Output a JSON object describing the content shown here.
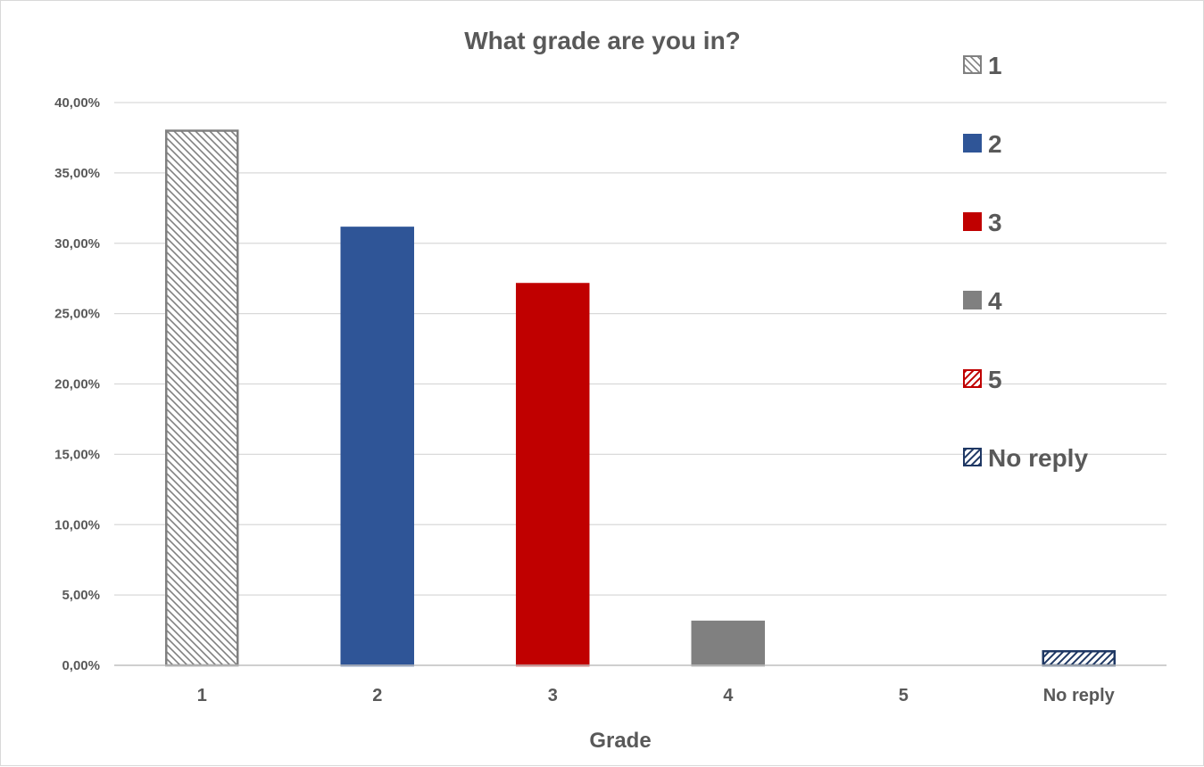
{
  "chart_data": {
    "type": "bar",
    "title": "What grade are you in?",
    "xlabel": "Grade",
    "ylabel": "",
    "categories": [
      "1",
      "2",
      "3",
      "4",
      "5",
      "No reply"
    ],
    "values": [
      38.0,
      31.1,
      27.1,
      3.1,
      0.0,
      1.0
    ],
    "ylim": [
      0,
      40
    ],
    "ytick_step": 5,
    "ytick_labels": [
      "0,00%",
      "5,00%",
      "10,00%",
      "15,00%",
      "20,00%",
      "25,00%",
      "30,00%",
      "35,00%",
      "40,00%"
    ],
    "grid": true,
    "legend_position": "right",
    "legend": [
      "1",
      "2",
      "3",
      "4",
      "5",
      "No reply"
    ],
    "bar_styles": [
      {
        "fill": "hatch-back",
        "color": "#808080"
      },
      {
        "fill": "solid",
        "color": "#2f5597"
      },
      {
        "fill": "solid",
        "color": "#c00000"
      },
      {
        "fill": "solid",
        "color": "#808080"
      },
      {
        "fill": "hatch-fwd",
        "color": "#c00000"
      },
      {
        "fill": "hatch-fwd",
        "color": "#1f3864"
      }
    ],
    "colors": {
      "text": "#595959",
      "grid": "#d9d9d9",
      "axis": "#bfbfbf"
    }
  }
}
